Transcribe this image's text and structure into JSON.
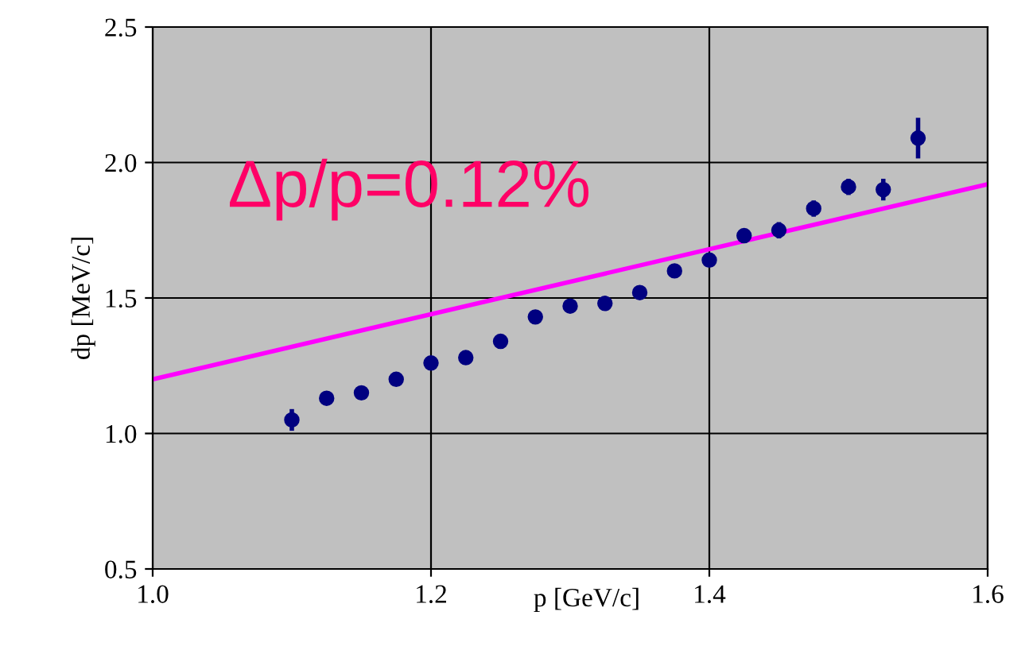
{
  "chart_data": {
    "type": "scatter",
    "xlabel": "p [GeV/c]",
    "ylabel": "dp [MeV/c]",
    "xlim": [
      1.0,
      1.6
    ],
    "xticks": [
      {
        "value": 1,
        "label": "1.0"
      },
      1.2,
      1.4,
      1.6
    ],
    "ylim": [
      0.5,
      2.5
    ],
    "yticks": [
      0.5,
      {
        "value": 1,
        "label": "1.0"
      },
      1.5,
      {
        "value": 2,
        "label": "2.0"
      },
      2.5
    ],
    "grid": true,
    "marker": "circle",
    "annotations": [
      "Δp/p=0.12%"
    ],
    "series": [
      {
        "color": "#000080",
        "x": [
          1.1,
          1.125,
          1.15,
          1.175,
          1.2,
          1.225,
          1.25,
          1.275,
          1.3,
          1.325,
          1.35,
          1.375,
          1.4,
          1.425,
          1.45,
          1.475,
          1.5,
          1.525,
          1.55
        ],
        "values": [
          1.05,
          1.13,
          1.15,
          1.2,
          1.26,
          1.28,
          1.34,
          1.43,
          1.47,
          1.48,
          1.52,
          1.6,
          1.64,
          1.73,
          1.75,
          1.83,
          1.91,
          1.9,
          2.09
        ],
        "errors": [
          0.04,
          0.02,
          0.02,
          0.02,
          0.02,
          0.02,
          0.02,
          0.02,
          0.02,
          0.02,
          0.02,
          0.02,
          0.02,
          0.02,
          0.03,
          0.03,
          0.03,
          0.04,
          0.075
        ]
      },
      {
        "type": "line",
        "color": "#ff00ff",
        "x": [
          1.0,
          1.6
        ],
        "values": [
          1.2,
          1.92
        ],
        "marker": "none"
      }
    ]
  }
}
